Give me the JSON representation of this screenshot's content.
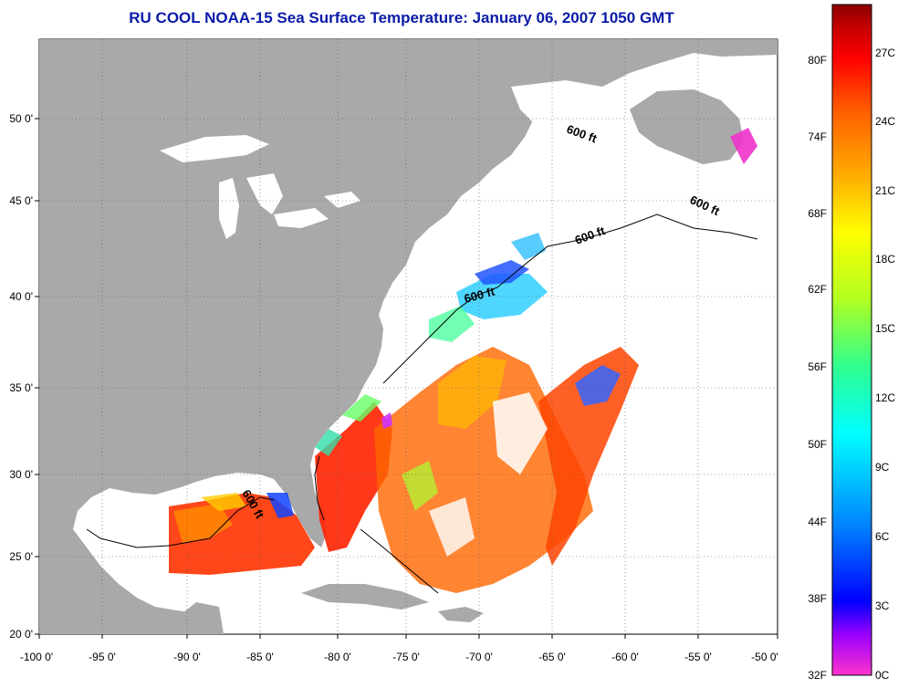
{
  "title": "RU COOL  NOAA-15  Sea Surface Temperature:  January 06, 2007 1050 GMT",
  "lon_ticks": [
    "-100 0'",
    "-95 0'",
    "-90 0'",
    "-85 0'",
    "-80 0'",
    "-75 0'",
    "-70 0'",
    "-65 0'",
    "-60 0'",
    "-55 0'",
    "-50 0'"
  ],
  "lat_ticks": [
    "50 0'",
    "45 0'",
    "40 0'",
    "35 0'",
    "30 0'",
    "25 0'",
    "20 0'"
  ],
  "contour_label": "600 ft",
  "colorbar": {
    "fahrenheit": [
      "80F",
      "74F",
      "68F",
      "62F",
      "56F",
      "50F",
      "44F",
      "38F",
      "32F"
    ],
    "celsius": [
      "27C",
      "24C",
      "21C",
      "18C",
      "15C",
      "12C",
      "9C",
      "6C",
      "3C",
      "0C"
    ],
    "colors": [
      "#ff33cc",
      "#9a00ff",
      "#0000ff",
      "#0080ff",
      "#00ffff",
      "#30ff90",
      "#b0ff20",
      "#ffff00",
      "#ffb000",
      "#ff6000",
      "#ff0000",
      "#c00000",
      "#8b0000"
    ]
  },
  "colors": {
    "land": "#a9a9a9",
    "water": "#ffffff",
    "title": "#0a1aa8"
  }
}
